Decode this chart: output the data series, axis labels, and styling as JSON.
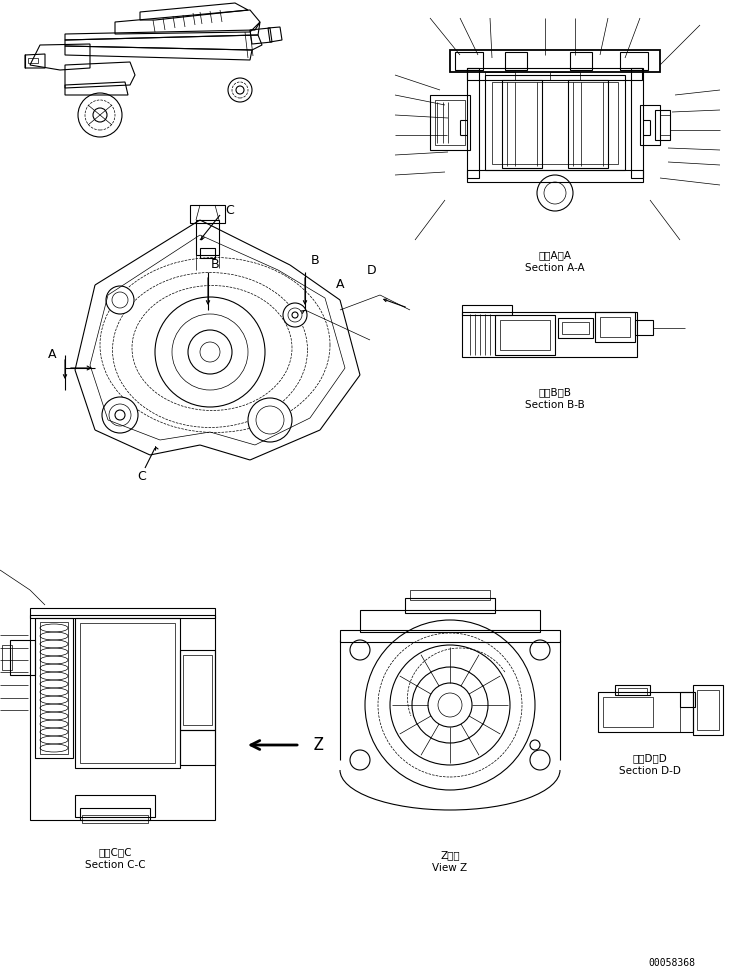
{
  "bg_color": "#ffffff",
  "line_color": "#000000",
  "fig_width": 7.35,
  "fig_height": 9.75,
  "dpi": 100,
  "labels": {
    "section_aa_jp": "断面A－A",
    "section_aa_en": "Section A-A",
    "section_bb_jp": "断面B－B",
    "section_bb_en": "Section B-B",
    "section_cc_jp": "断面C－C",
    "section_cc_en": "Section C-C",
    "section_dd_jp": "断面D－D",
    "section_dd_en": "Section D-D",
    "view_z_jp": "Z　視",
    "view_z_en": "View Z",
    "part_num": "00058368",
    "arrow_z": "Z",
    "label_A": "A",
    "label_B": "B",
    "label_C": "C",
    "label_D": "D"
  }
}
